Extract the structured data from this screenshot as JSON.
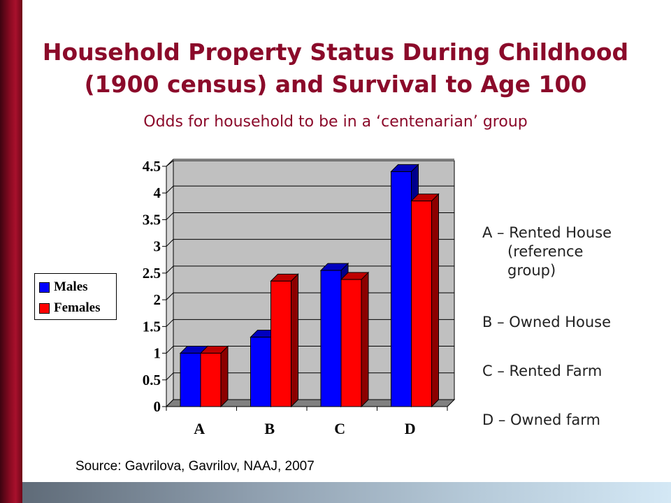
{
  "title": {
    "line1": "Household Property Status During Childhood",
    "line2": "(1900 census) and Survival to Age 100"
  },
  "subtitle": "Odds for household to be in a ‘centenarian’ group",
  "legend": {
    "males": "Males",
    "females": "Females"
  },
  "notes": {
    "a_line1": "A – Rented House",
    "a_line2": "(reference",
    "a_line3": "group)",
    "b": "B – Owned House",
    "c": "C – Rented Farm",
    "d": "D – Owned farm"
  },
  "source": "Source: Gavrilova, Gavrilov, NAAJ, 2007",
  "colors": {
    "males": "#0000ff",
    "females": "#ff0000",
    "plot_background": "#c0c0c0",
    "title": "#8b0a2a"
  },
  "chart_data": {
    "type": "bar",
    "categories": [
      "A",
      "B",
      "C",
      "D"
    ],
    "series": [
      {
        "name": "Males",
        "values": [
          1.0,
          1.3,
          2.55,
          4.4
        ]
      },
      {
        "name": "Females",
        "values": [
          1.0,
          2.35,
          2.38,
          3.85
        ]
      }
    ],
    "y_ticks": [
      "0",
      "0.5",
      "1",
      "1.5",
      "2",
      "2.5",
      "3",
      "3.5",
      "4",
      "4.5"
    ],
    "ylim": [
      0,
      4.5
    ],
    "grid": true,
    "legend_position": "left",
    "style": "3d-clustered"
  }
}
